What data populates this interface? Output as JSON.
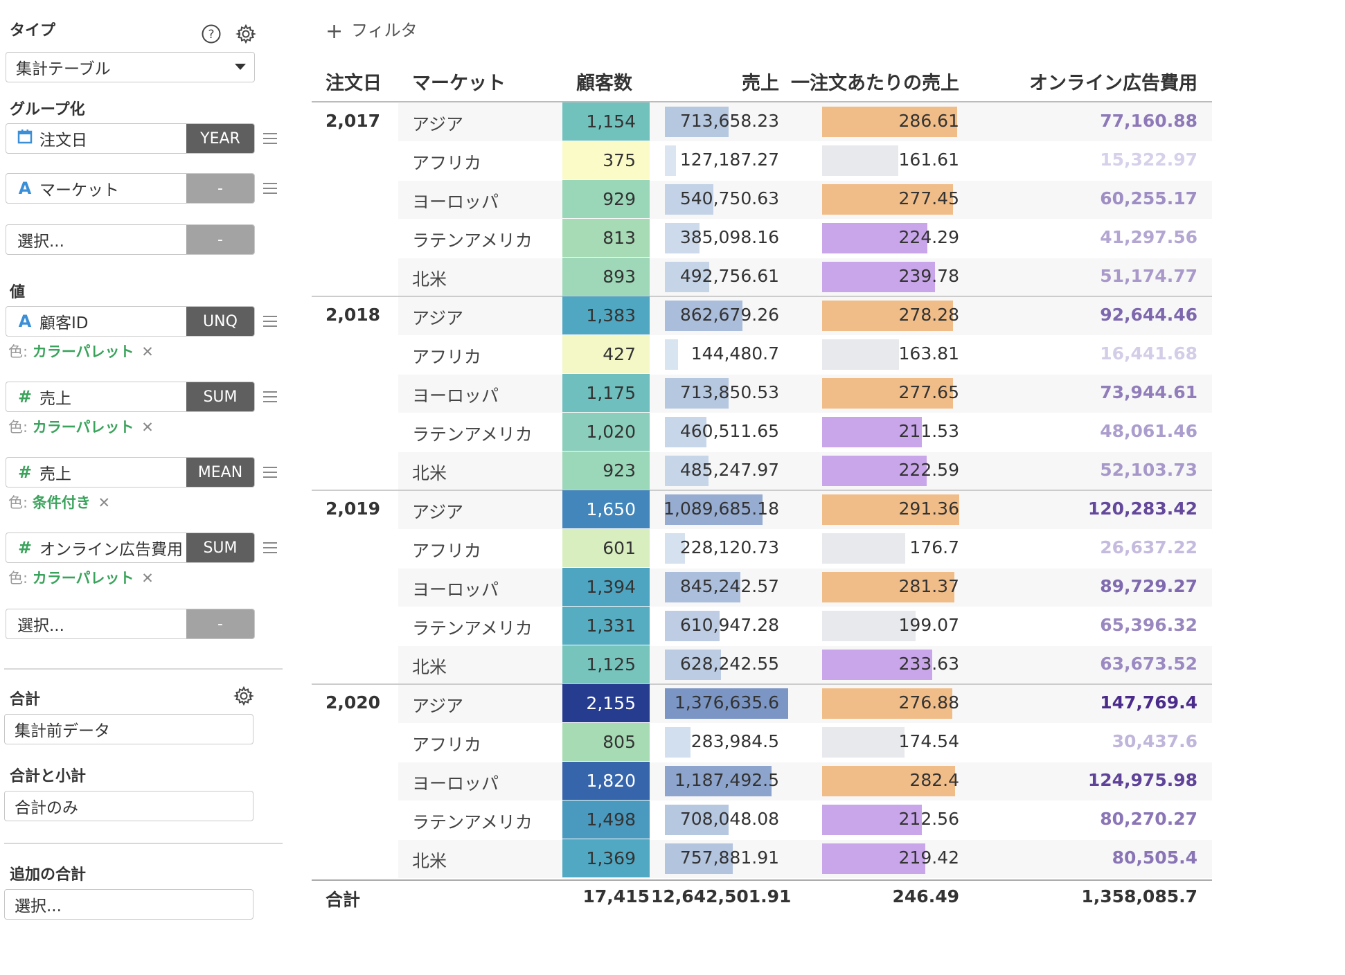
{
  "sidebar": {
    "type_heading": "タイプ",
    "type_value": "集計テーブル",
    "group_heading": "グループ化",
    "groups": [
      {
        "icon": "calendar-icon",
        "label": "注文日",
        "agg": "YEAR"
      },
      {
        "icon": "text-type-icon",
        "label": "マーケット",
        "agg": "-"
      },
      {
        "icon": "",
        "label": "選択...",
        "agg": "-"
      }
    ],
    "value_heading": "値",
    "values": [
      {
        "icon_glyph": "A",
        "label": "顧客ID",
        "agg": "UNQ",
        "color_prefix": "色:",
        "color_value": "カラーパレット"
      },
      {
        "icon_glyph": "#",
        "label": "売上",
        "agg": "SUM",
        "color_prefix": "色:",
        "color_value": "カラーパレット"
      },
      {
        "icon_glyph": "#",
        "label": "売上",
        "agg": "MEAN",
        "color_prefix": "色:",
        "color_value": "条件付き"
      },
      {
        "icon_glyph": "#",
        "label": "オンライン広告費用",
        "agg": "SUM",
        "color_prefix": "色:",
        "color_value": "カラーパレット"
      }
    ],
    "value_select": {
      "label": "選択...",
      "agg": "-"
    },
    "total_heading": "合計",
    "total_value": "集計前データ",
    "subtotal_heading": "合計と小計",
    "subtotal_value": "合計のみ",
    "extra_heading": "追加の合計",
    "extra_value": "選択..."
  },
  "toolbar": {
    "filter_label": "フィルタ"
  },
  "table": {
    "headers": [
      "注文日",
      "マーケット",
      "顧客数",
      "売上",
      "一注文あたりの売上",
      "オンライン広告費用"
    ],
    "groups": [
      {
        "year": "2,017",
        "rows": [
          {
            "market": "アジア",
            "customers": "1,154",
            "sales": "713,658.23",
            "mean": "286.61",
            "ad": "77,160.88",
            "c": 1154,
            "s": 713658.23,
            "m": 286.61,
            "a": 77160.88
          },
          {
            "market": "アフリカ",
            "customers": "375",
            "sales": "127,187.27",
            "mean": "161.61",
            "ad": "15,322.97",
            "c": 375,
            "s": 127187.27,
            "m": 161.61,
            "a": 15322.97
          },
          {
            "market": "ヨーロッパ",
            "customers": "929",
            "sales": "540,750.63",
            "mean": "277.45",
            "ad": "60,255.17",
            "c": 929,
            "s": 540750.63,
            "m": 277.45,
            "a": 60255.17
          },
          {
            "market": "ラテンアメリカ",
            "customers": "813",
            "sales": "385,098.16",
            "mean": "224.29",
            "ad": "41,297.56",
            "c": 813,
            "s": 385098.16,
            "m": 224.29,
            "a": 41297.56
          },
          {
            "market": "北米",
            "customers": "893",
            "sales": "492,756.61",
            "mean": "239.78",
            "ad": "51,174.77",
            "c": 893,
            "s": 492756.61,
            "m": 239.78,
            "a": 51174.77
          }
        ]
      },
      {
        "year": "2,018",
        "rows": [
          {
            "market": "アジア",
            "customers": "1,383",
            "sales": "862,679.26",
            "mean": "278.28",
            "ad": "92,644.46",
            "c": 1383,
            "s": 862679.26,
            "m": 278.28,
            "a": 92644.46
          },
          {
            "market": "アフリカ",
            "customers": "427",
            "sales": "144,480.7",
            "mean": "163.81",
            "ad": "16,441.68",
            "c": 427,
            "s": 144480.7,
            "m": 163.81,
            "a": 16441.68
          },
          {
            "market": "ヨーロッパ",
            "customers": "1,175",
            "sales": "713,850.53",
            "mean": "277.65",
            "ad": "73,944.61",
            "c": 1175,
            "s": 713850.53,
            "m": 277.65,
            "a": 73944.61
          },
          {
            "market": "ラテンアメリカ",
            "customers": "1,020",
            "sales": "460,511.65",
            "mean": "211.53",
            "ad": "48,061.46",
            "c": 1020,
            "s": 460511.65,
            "m": 211.53,
            "a": 48061.46
          },
          {
            "market": "北米",
            "customers": "923",
            "sales": "485,247.97",
            "mean": "222.59",
            "ad": "52,103.73",
            "c": 923,
            "s": 485247.97,
            "m": 222.59,
            "a": 52103.73
          }
        ]
      },
      {
        "year": "2,019",
        "rows": [
          {
            "market": "アジア",
            "customers": "1,650",
            "sales": "1,089,685.18",
            "mean": "291.36",
            "ad": "120,283.42",
            "c": 1650,
            "s": 1089685.18,
            "m": 291.36,
            "a": 120283.42
          },
          {
            "market": "アフリカ",
            "customers": "601",
            "sales": "228,120.73",
            "mean": "176.7",
            "ad": "26,637.22",
            "c": 601,
            "s": 228120.73,
            "m": 176.7,
            "a": 26637.22
          },
          {
            "market": "ヨーロッパ",
            "customers": "1,394",
            "sales": "845,242.57",
            "mean": "281.37",
            "ad": "89,729.27",
            "c": 1394,
            "s": 845242.57,
            "m": 281.37,
            "a": 89729.27
          },
          {
            "market": "ラテンアメリカ",
            "customers": "1,331",
            "sales": "610,947.28",
            "mean": "199.07",
            "ad": "65,396.32",
            "c": 1331,
            "s": 610947.28,
            "m": 199.07,
            "a": 65396.32
          },
          {
            "market": "北米",
            "customers": "1,125",
            "sales": "628,242.55",
            "mean": "233.63",
            "ad": "63,673.52",
            "c": 1125,
            "s": 628242.55,
            "m": 233.63,
            "a": 63673.52
          }
        ]
      },
      {
        "year": "2,020",
        "rows": [
          {
            "market": "アジア",
            "customers": "2,155",
            "sales": "1,376,635.6",
            "mean": "276.88",
            "ad": "147,769.4",
            "c": 2155,
            "s": 1376635.6,
            "m": 276.88,
            "a": 147769.4
          },
          {
            "market": "アフリカ",
            "customers": "805",
            "sales": "283,984.5",
            "mean": "174.54",
            "ad": "30,437.6",
            "c": 805,
            "s": 283984.5,
            "m": 174.54,
            "a": 30437.6
          },
          {
            "market": "ヨーロッパ",
            "customers": "1,820",
            "sales": "1,187,492.5",
            "mean": "282.4",
            "ad": "124,975.98",
            "c": 1820,
            "s": 1187492.5,
            "m": 282.4,
            "a": 124975.98
          },
          {
            "market": "ラテンアメリカ",
            "customers": "1,498",
            "sales": "708,048.08",
            "mean": "212.56",
            "ad": "80,270.27",
            "c": 1498,
            "s": 708048.08,
            "m": 212.56,
            "a": 80270.27
          },
          {
            "market": "北米",
            "customers": "1,369",
            "sales": "757,881.91",
            "mean": "219.42",
            "ad": "80,505.4",
            "c": 1369,
            "s": 757881.91,
            "m": 219.42,
            "a": 80505.4
          }
        ]
      }
    ],
    "totals": {
      "label": "合計",
      "customers": "17,415",
      "sales": "12,642,501.91",
      "mean": "246.49",
      "ad": "1,358,085.7"
    },
    "colors": {
      "mean_high": "#f0bd88",
      "mean_mid": "#e8e9ec",
      "mean_low": "#c9a6ea",
      "sales_bar": "#b3cde3",
      "ad_text_dark": "#4a2a8a",
      "ad_text_light": "#d6d0ea"
    }
  }
}
